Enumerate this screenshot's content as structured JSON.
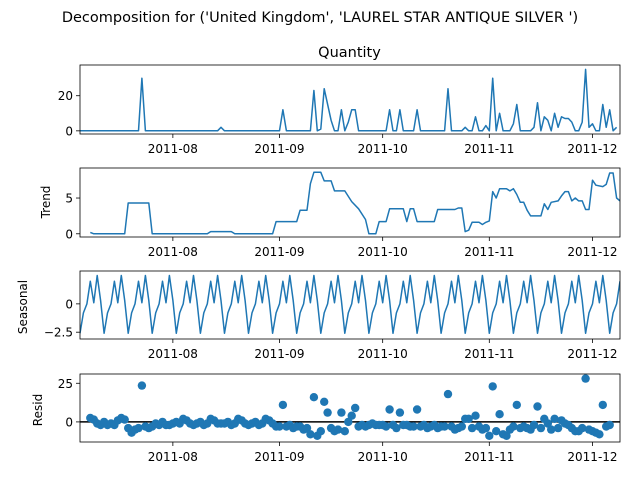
{
  "figure": {
    "suptitle": "Decomposition for ('United Kingdom', 'LAUREL STAR ANTIQUE SILVER ')"
  },
  "chart_data": [
    {
      "type": "line",
      "title": "Quantity",
      "ylabel": "",
      "xlim": [
        "2011-07-05",
        "2011-12-09"
      ],
      "ylim": [
        -1.8,
        37.5
      ],
      "yticks": [
        0,
        20
      ],
      "xticks": [
        "2011-08",
        "2011-09",
        "2011-10",
        "2011-11",
        "2011-12"
      ],
      "color": "#1f77b4",
      "points": [
        [
          "2011-07-05",
          0
        ],
        [
          "2011-07-22",
          0
        ],
        [
          "2011-07-23",
          30
        ],
        [
          "2011-07-24",
          0
        ],
        [
          "2011-08-14",
          0
        ],
        [
          "2011-08-15",
          2
        ],
        [
          "2011-08-16",
          0
        ],
        [
          "2011-09-01",
          0
        ],
        [
          "2011-09-02",
          12
        ],
        [
          "2011-09-03",
          0
        ],
        [
          "2011-09-10",
          0
        ],
        [
          "2011-09-11",
          23
        ],
        [
          "2011-09-12",
          0
        ],
        [
          "2011-09-13",
          1
        ],
        [
          "2011-09-14",
          24
        ],
        [
          "2011-09-16",
          6
        ],
        [
          "2011-09-17",
          0
        ],
        [
          "2011-09-18",
          0
        ],
        [
          "2011-09-19",
          12
        ],
        [
          "2011-09-20",
          0
        ],
        [
          "2011-09-21",
          5
        ],
        [
          "2011-09-22",
          12
        ],
        [
          "2011-09-23",
          12
        ],
        [
          "2011-09-24",
          0
        ],
        [
          "2011-10-02",
          0
        ],
        [
          "2011-10-03",
          12
        ],
        [
          "2011-10-04",
          0
        ],
        [
          "2011-10-05",
          0
        ],
        [
          "2011-10-06",
          12
        ],
        [
          "2011-10-07",
          0
        ],
        [
          "2011-10-10",
          0
        ],
        [
          "2011-10-11",
          12
        ],
        [
          "2011-10-12",
          0
        ],
        [
          "2011-10-19",
          0
        ],
        [
          "2011-10-20",
          24
        ],
        [
          "2011-10-21",
          0
        ],
        [
          "2011-10-24",
          0
        ],
        [
          "2011-10-25",
          2
        ],
        [
          "2011-10-26",
          0
        ],
        [
          "2011-10-27",
          0
        ],
        [
          "2011-10-28",
          8
        ],
        [
          "2011-10-29",
          0
        ],
        [
          "2011-10-30",
          0
        ],
        [
          "2011-10-31",
          3
        ],
        [
          "2011-11-01",
          0
        ],
        [
          "2011-11-02",
          30
        ],
        [
          "2011-11-03",
          0
        ],
        [
          "2011-11-04",
          10
        ],
        [
          "2011-11-05",
          0
        ],
        [
          "2011-11-07",
          0
        ],
        [
          "2011-11-08",
          4
        ],
        [
          "2011-11-09",
          15
        ],
        [
          "2011-11-10",
          0
        ],
        [
          "2011-11-13",
          0
        ],
        [
          "2011-11-14",
          2
        ],
        [
          "2011-11-15",
          16
        ],
        [
          "2011-11-16",
          0
        ],
        [
          "2011-11-17",
          8
        ],
        [
          "2011-11-18",
          6
        ],
        [
          "2011-11-19",
          0
        ],
        [
          "2011-11-20",
          10
        ],
        [
          "2011-11-21",
          2
        ],
        [
          "2011-11-22",
          8
        ],
        [
          "2011-11-23",
          7
        ],
        [
          "2011-11-24",
          7
        ],
        [
          "2011-11-25",
          5
        ],
        [
          "2011-11-26",
          0
        ],
        [
          "2011-11-27",
          0
        ],
        [
          "2011-11-28",
          5
        ],
        [
          "2011-11-29",
          35
        ],
        [
          "2011-11-30",
          2
        ],
        [
          "2011-12-01",
          4
        ],
        [
          "2011-12-02",
          0
        ],
        [
          "2011-12-03",
          0
        ],
        [
          "2011-12-04",
          15
        ],
        [
          "2011-12-05",
          2
        ],
        [
          "2011-12-06",
          12
        ],
        [
          "2011-12-07",
          0
        ],
        [
          "2011-12-08",
          2
        ]
      ]
    },
    {
      "type": "line",
      "title": "",
      "ylabel": "Trend",
      "xlim": [
        "2011-07-05",
        "2011-12-09"
      ],
      "ylim": [
        -0.45,
        9.2
      ],
      "yticks": [
        0,
        5
      ],
      "xticks": [
        "2011-08",
        "2011-09",
        "2011-10",
        "2011-11",
        "2011-12"
      ],
      "color": "#1f77b4",
      "points": [
        [
          "2011-07-08",
          0.2
        ],
        [
          "2011-07-09",
          0
        ],
        [
          "2011-07-18",
          0
        ],
        [
          "2011-07-19",
          4.3
        ],
        [
          "2011-07-25",
          4.3
        ],
        [
          "2011-07-26",
          0
        ],
        [
          "2011-08-11",
          0
        ],
        [
          "2011-08-12",
          0.3
        ],
        [
          "2011-08-18",
          0.3
        ],
        [
          "2011-08-19",
          0
        ],
        [
          "2011-08-30",
          0
        ],
        [
          "2011-08-31",
          1.7
        ],
        [
          "2011-09-06",
          1.7
        ],
        [
          "2011-09-07",
          3.3
        ],
        [
          "2011-09-09",
          3.3
        ],
        [
          "2011-09-10",
          7
        ],
        [
          "2011-09-11",
          8.6
        ],
        [
          "2011-09-13",
          8.6
        ],
        [
          "2011-09-14",
          7.4
        ],
        [
          "2011-09-16",
          7.4
        ],
        [
          "2011-09-17",
          6
        ],
        [
          "2011-09-20",
          6
        ],
        [
          "2011-09-22",
          4.5
        ],
        [
          "2011-09-24",
          3.5
        ],
        [
          "2011-09-26",
          2
        ],
        [
          "2011-09-27",
          0
        ],
        [
          "2011-09-29",
          0
        ],
        [
          "2011-09-30",
          1.7
        ],
        [
          "2011-10-02",
          1.7
        ],
        [
          "2011-10-03",
          3.5
        ],
        [
          "2011-10-07",
          3.5
        ],
        [
          "2011-10-08",
          1.7
        ],
        [
          "2011-10-09",
          3.5
        ],
        [
          "2011-10-10",
          3.5
        ],
        [
          "2011-10-11",
          1.7
        ],
        [
          "2011-10-16",
          1.7
        ],
        [
          "2011-10-17",
          3.4
        ],
        [
          "2011-10-22",
          3.4
        ],
        [
          "2011-10-23",
          3.6
        ],
        [
          "2011-10-24",
          3.6
        ],
        [
          "2011-10-25",
          0.3
        ],
        [
          "2011-10-26",
          0.5
        ],
        [
          "2011-10-27",
          1.6
        ],
        [
          "2011-10-29",
          1.6
        ],
        [
          "2011-10-30",
          1.3
        ],
        [
          "2011-10-31",
          1.6
        ],
        [
          "2011-11-01",
          1.8
        ],
        [
          "2011-11-02",
          5.9
        ],
        [
          "2011-11-03",
          5.0
        ],
        [
          "2011-11-04",
          6.3
        ],
        [
          "2011-11-06",
          6.3
        ],
        [
          "2011-11-07",
          6.0
        ],
        [
          "2011-11-08",
          6.3
        ],
        [
          "2011-11-09",
          5.5
        ],
        [
          "2011-11-10",
          4.4
        ],
        [
          "2011-11-11",
          4.4
        ],
        [
          "2011-11-12",
          3.3
        ],
        [
          "2011-11-13",
          2.5
        ],
        [
          "2011-11-16",
          2.5
        ],
        [
          "2011-11-17",
          4.2
        ],
        [
          "2011-11-18",
          3.4
        ],
        [
          "2011-11-19",
          4.4
        ],
        [
          "2011-11-21",
          4.6
        ],
        [
          "2011-11-22",
          5.3
        ],
        [
          "2011-11-23",
          5.9
        ],
        [
          "2011-11-24",
          5.9
        ],
        [
          "2011-11-25",
          4.6
        ],
        [
          "2011-11-26",
          5.0
        ],
        [
          "2011-11-27",
          4.6
        ],
        [
          "2011-11-28",
          4.6
        ],
        [
          "2011-11-29",
          3.4
        ],
        [
          "2011-11-30",
          3.4
        ],
        [
          "2011-12-01",
          7.5
        ],
        [
          "2011-12-02",
          6.8
        ],
        [
          "2011-12-04",
          6.6
        ],
        [
          "2011-12-05",
          6.9
        ],
        [
          "2011-12-06",
          8.5
        ],
        [
          "2011-12-07",
          8.5
        ],
        [
          "2011-12-08",
          5.0
        ],
        [
          "2011-12-09",
          4.6
        ]
      ]
    },
    {
      "type": "line",
      "title": "",
      "ylabel": "Seasonal",
      "xlim": [
        "2011-07-05",
        "2011-12-09"
      ],
      "ylim": [
        -3.1,
        2.9
      ],
      "yticks": [
        0.0,
        -2.5
      ],
      "xticks": [
        "2011-08",
        "2011-09",
        "2011-10",
        "2011-11",
        "2011-12"
      ],
      "color": "#1f77b4",
      "pattern_start": "2011-07-05",
      "pattern": [
        -2.6,
        -0.8,
        0.0,
        2.0,
        0.1,
        2.5,
        0.3
      ]
    },
    {
      "type": "scatter",
      "title": "",
      "ylabel": "Resid",
      "xlim": [
        "2011-07-05",
        "2011-12-09"
      ],
      "ylim": [
        -13,
        31
      ],
      "yticks": [
        0,
        25
      ],
      "xticks": [
        "2011-08",
        "2011-09",
        "2011-10",
        "2011-11",
        "2011-12"
      ],
      "color": "#1f77b4",
      "baseline": 0,
      "points": [
        [
          "2011-07-08",
          2.5
        ],
        [
          "2011-07-09",
          1.5
        ],
        [
          "2011-07-10",
          -1
        ],
        [
          "2011-07-11",
          -2
        ],
        [
          "2011-07-12",
          0
        ],
        [
          "2011-07-13",
          -2
        ],
        [
          "2011-07-14",
          -1
        ],
        [
          "2011-07-15",
          -2
        ],
        [
          "2011-07-16",
          1
        ],
        [
          "2011-07-17",
          2.5
        ],
        [
          "2011-07-18",
          1.5
        ],
        [
          "2011-07-19",
          -4
        ],
        [
          "2011-07-20",
          -7
        ],
        [
          "2011-07-21",
          -5
        ],
        [
          "2011-07-22",
          -4
        ],
        [
          "2011-07-23",
          23.5
        ],
        [
          "2011-07-24",
          -3
        ],
        [
          "2011-07-25",
          -4
        ],
        [
          "2011-07-26",
          -3
        ],
        [
          "2011-07-27",
          -1
        ],
        [
          "2011-07-28",
          -2
        ],
        [
          "2011-07-29",
          0
        ],
        [
          "2011-07-30",
          -2
        ],
        [
          "2011-07-31",
          -2
        ],
        [
          "2011-08-01",
          -1
        ],
        [
          "2011-08-02",
          0
        ],
        [
          "2011-08-03",
          -1
        ],
        [
          "2011-08-04",
          2
        ],
        [
          "2011-08-05",
          1
        ],
        [
          "2011-08-06",
          -1
        ],
        [
          "2011-08-07",
          -2
        ],
        [
          "2011-08-08",
          -1
        ],
        [
          "2011-08-09",
          0
        ],
        [
          "2011-08-10",
          -2
        ],
        [
          "2011-08-11",
          -1
        ],
        [
          "2011-08-12",
          2
        ],
        [
          "2011-08-13",
          1
        ],
        [
          "2011-08-14",
          -1
        ],
        [
          "2011-08-15",
          -1
        ],
        [
          "2011-08-16",
          -1
        ],
        [
          "2011-08-17",
          0
        ],
        [
          "2011-08-18",
          -2
        ],
        [
          "2011-08-19",
          -1
        ],
        [
          "2011-08-20",
          2
        ],
        [
          "2011-08-21",
          1
        ],
        [
          "2011-08-22",
          -1
        ],
        [
          "2011-08-23",
          -2
        ],
        [
          "2011-08-24",
          -1
        ],
        [
          "2011-08-25",
          0
        ],
        [
          "2011-08-26",
          -2
        ],
        [
          "2011-08-27",
          -1
        ],
        [
          "2011-08-28",
          2
        ],
        [
          "2011-08-29",
          1
        ],
        [
          "2011-08-30",
          -1
        ],
        [
          "2011-08-31",
          -3
        ],
        [
          "2011-09-01",
          -3
        ],
        [
          "2011-09-02",
          11
        ],
        [
          "2011-09-03",
          -3
        ],
        [
          "2011-09-04",
          -2
        ],
        [
          "2011-09-05",
          -4
        ],
        [
          "2011-09-06",
          -3
        ],
        [
          "2011-09-07",
          -3
        ],
        [
          "2011-09-08",
          -5
        ],
        [
          "2011-09-09",
          -4
        ],
        [
          "2011-09-10",
          -8
        ],
        [
          "2011-09-11",
          16
        ],
        [
          "2011-09-12",
          -9
        ],
        [
          "2011-09-13",
          -6
        ],
        [
          "2011-09-14",
          13
        ],
        [
          "2011-09-15",
          6
        ],
        [
          "2011-09-16",
          -4
        ],
        [
          "2011-09-17",
          -6
        ],
        [
          "2011-09-18",
          -5
        ],
        [
          "2011-09-19",
          6
        ],
        [
          "2011-09-20",
          -6
        ],
        [
          "2011-09-21",
          0
        ],
        [
          "2011-09-22",
          4
        ],
        [
          "2011-09-23",
          9
        ],
        [
          "2011-09-24",
          -3
        ],
        [
          "2011-09-25",
          -2
        ],
        [
          "2011-09-26",
          -3
        ],
        [
          "2011-09-27",
          -2
        ],
        [
          "2011-09-28",
          -1
        ],
        [
          "2011-09-29",
          -2
        ],
        [
          "2011-09-30",
          -2
        ],
        [
          "2011-10-01",
          -2
        ],
        [
          "2011-10-02",
          -3
        ],
        [
          "2011-10-03",
          8
        ],
        [
          "2011-10-04",
          -2
        ],
        [
          "2011-10-05",
          -4
        ],
        [
          "2011-10-06",
          6
        ],
        [
          "2011-10-07",
          -2
        ],
        [
          "2011-10-08",
          -2
        ],
        [
          "2011-10-09",
          -3
        ],
        [
          "2011-10-10",
          -3
        ],
        [
          "2011-10-11",
          8
        ],
        [
          "2011-10-12",
          -3
        ],
        [
          "2011-10-13",
          -2
        ],
        [
          "2011-10-14",
          -4
        ],
        [
          "2011-10-15",
          -3
        ],
        [
          "2011-10-16",
          -2
        ],
        [
          "2011-10-17",
          -4
        ],
        [
          "2011-10-18",
          -3
        ],
        [
          "2011-10-19",
          -3
        ],
        [
          "2011-10-20",
          18
        ],
        [
          "2011-10-21",
          -3
        ],
        [
          "2011-10-22",
          -5
        ],
        [
          "2011-10-23",
          -4
        ],
        [
          "2011-10-24",
          -3
        ],
        [
          "2011-10-25",
          2
        ],
        [
          "2011-10-26",
          2
        ],
        [
          "2011-10-27",
          -4
        ],
        [
          "2011-10-28",
          4
        ],
        [
          "2011-10-29",
          -3
        ],
        [
          "2011-10-30",
          -5
        ],
        [
          "2011-10-31",
          -4
        ],
        [
          "2011-11-01",
          -9
        ],
        [
          "2011-11-02",
          23
        ],
        [
          "2011-11-03",
          -6
        ],
        [
          "2011-11-04",
          5
        ],
        [
          "2011-11-05",
          -8
        ],
        [
          "2011-11-06",
          -9
        ],
        [
          "2011-11-07",
          -5
        ],
        [
          "2011-11-08",
          -3
        ],
        [
          "2011-11-09",
          11
        ],
        [
          "2011-11-10",
          -4
        ],
        [
          "2011-11-11",
          -3
        ],
        [
          "2011-11-12",
          -4
        ],
        [
          "2011-11-13",
          -5
        ],
        [
          "2011-11-14",
          -2
        ],
        [
          "2011-11-15",
          10
        ],
        [
          "2011-11-16",
          -4
        ],
        [
          "2011-11-17",
          2
        ],
        [
          "2011-11-18",
          -1
        ],
        [
          "2011-11-19",
          -5
        ],
        [
          "2011-11-20",
          2
        ],
        [
          "2011-11-21",
          -4
        ],
        [
          "2011-11-22",
          1
        ],
        [
          "2011-11-23",
          -1
        ],
        [
          "2011-11-24",
          -2
        ],
        [
          "2011-11-25",
          -4
        ],
        [
          "2011-11-26",
          -6
        ],
        [
          "2011-11-27",
          -6
        ],
        [
          "2011-11-28",
          -4
        ],
        [
          "2011-11-29",
          28
        ],
        [
          "2011-11-30",
          -5
        ],
        [
          "2011-12-01",
          -6
        ],
        [
          "2011-12-02",
          -7
        ],
        [
          "2011-12-03",
          -8
        ],
        [
          "2011-12-04",
          11
        ],
        [
          "2011-12-05",
          -3
        ],
        [
          "2011-12-06",
          -2
        ]
      ]
    }
  ]
}
